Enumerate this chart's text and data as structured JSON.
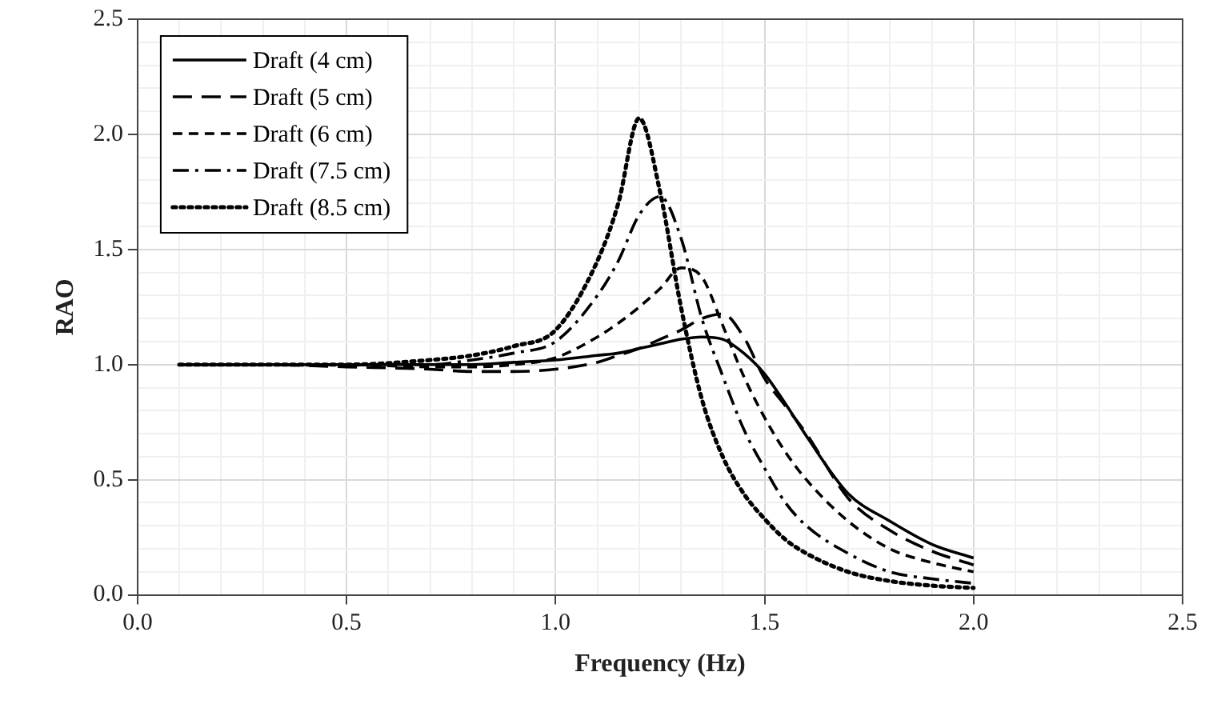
{
  "chart_data": {
    "type": "line",
    "xlabel": "Frequency (Hz)",
    "ylabel": "RAO",
    "xlim": [
      0,
      2.5
    ],
    "ylim": [
      0,
      2.5
    ],
    "xticks": [
      {
        "value": 0,
        "label": "0.0"
      },
      {
        "value": 0.1,
        "label": null
      },
      {
        "value": 0.2,
        "label": null
      },
      {
        "value": 0.3,
        "label": null
      },
      {
        "value": 0.4,
        "label": null
      },
      {
        "value": 0.5,
        "label": "0.5"
      },
      {
        "value": 0.6,
        "label": null
      },
      {
        "value": 0.7,
        "label": null
      },
      {
        "value": 0.8,
        "label": null
      },
      {
        "value": 0.9,
        "label": null
      },
      {
        "value": 1,
        "label": "1.0"
      },
      {
        "value": 1.1,
        "label": null
      },
      {
        "value": 1.2,
        "label": null
      },
      {
        "value": 1.3,
        "label": null
      },
      {
        "value": 1.4,
        "label": null
      },
      {
        "value": 1.5,
        "label": "1.5"
      },
      {
        "value": 1.6,
        "label": null
      },
      {
        "value": 1.7,
        "label": null
      },
      {
        "value": 1.8,
        "label": null
      },
      {
        "value": 1.9,
        "label": null
      },
      {
        "value": 2,
        "label": "2.0"
      },
      {
        "value": 2.1,
        "label": null
      },
      {
        "value": 2.2,
        "label": null
      },
      {
        "value": 2.3,
        "label": null
      },
      {
        "value": 2.4,
        "label": null
      },
      {
        "value": 2.5,
        "label": "2.5"
      }
    ],
    "yticks": [
      {
        "value": 0,
        "label": "0.0"
      },
      {
        "value": 0.1,
        "label": null
      },
      {
        "value": 0.2,
        "label": null
      },
      {
        "value": 0.3,
        "label": null
      },
      {
        "value": 0.4,
        "label": null
      },
      {
        "value": 0.5,
        "label": "0.5"
      },
      {
        "value": 0.6,
        "label": null
      },
      {
        "value": 0.7,
        "label": null
      },
      {
        "value": 0.8,
        "label": null
      },
      {
        "value": 0.9,
        "label": null
      },
      {
        "value": 1,
        "label": "1.0"
      },
      {
        "value": 1.1,
        "label": null
      },
      {
        "value": 1.2,
        "label": null
      },
      {
        "value": 1.3,
        "label": null
      },
      {
        "value": 1.4,
        "label": null
      },
      {
        "value": 1.5,
        "label": "1.5"
      },
      {
        "value": 1.6,
        "label": null
      },
      {
        "value": 1.7,
        "label": null
      },
      {
        "value": 1.8,
        "label": null
      },
      {
        "value": 1.9,
        "label": null
      },
      {
        "value": 2,
        "label": "2.0"
      },
      {
        "value": 2.1,
        "label": null
      },
      {
        "value": 2.2,
        "label": null
      },
      {
        "value": 2.3,
        "label": null
      },
      {
        "value": 2.4,
        "label": null
      },
      {
        "value": 2.5,
        "label": "2.5"
      }
    ],
    "grid": true,
    "legend": "top left",
    "marker": "none",
    "x": [
      0.1,
      0.3,
      0.5,
      0.7,
      0.8,
      0.9,
      1.0,
      1.1,
      1.15,
      1.2,
      1.25,
      1.3,
      1.35,
      1.4,
      1.45,
      1.5,
      1.55,
      1.6,
      1.7,
      1.8,
      1.9,
      2.0
    ],
    "series": [
      {
        "name": "Draft (4 cm)",
        "color": "#000000",
        "line_style": "solid",
        "values": [
          1.0,
          1.0,
          1.0,
          1.0,
          1.0,
          1.01,
          1.02,
          1.04,
          1.05,
          1.07,
          1.09,
          1.11,
          1.12,
          1.11,
          1.05,
          0.96,
          0.83,
          0.69,
          0.44,
          0.32,
          0.22,
          0.16
        ]
      },
      {
        "name": "Draft (5 cm)",
        "color": "#000000",
        "line_style": "longdash",
        "values": [
          1.0,
          1.0,
          0.99,
          0.98,
          0.97,
          0.97,
          0.98,
          1.01,
          1.04,
          1.07,
          1.11,
          1.15,
          1.2,
          1.22,
          1.12,
          0.94,
          0.82,
          0.7,
          0.42,
          0.28,
          0.19,
          0.13
        ]
      },
      {
        "name": "Draft (6 cm)",
        "color": "#000000",
        "line_style": "dashed",
        "values": [
          1.0,
          1.0,
          1.0,
          0.99,
          0.99,
          1.0,
          1.03,
          1.12,
          1.18,
          1.25,
          1.33,
          1.42,
          1.38,
          1.17,
          0.95,
          0.77,
          0.62,
          0.5,
          0.32,
          0.2,
          0.14,
          0.1
        ]
      },
      {
        "name": "Draft (7.5 cm)",
        "color": "#000000",
        "line_style": "dashdot",
        "values": [
          1.0,
          1.0,
          1.0,
          1.0,
          1.02,
          1.05,
          1.1,
          1.3,
          1.45,
          1.65,
          1.73,
          1.55,
          1.2,
          0.95,
          0.72,
          0.55,
          0.4,
          0.3,
          0.18,
          0.1,
          0.07,
          0.05
        ]
      },
      {
        "name": "Draft (8.5 cm)",
        "color": "#000000",
        "line_style": "dotted",
        "values": [
          1.0,
          1.0,
          1.0,
          1.02,
          1.04,
          1.08,
          1.15,
          1.45,
          1.7,
          2.07,
          1.75,
          1.25,
          0.85,
          0.6,
          0.44,
          0.33,
          0.24,
          0.18,
          0.1,
          0.06,
          0.04,
          0.03
        ]
      }
    ]
  }
}
